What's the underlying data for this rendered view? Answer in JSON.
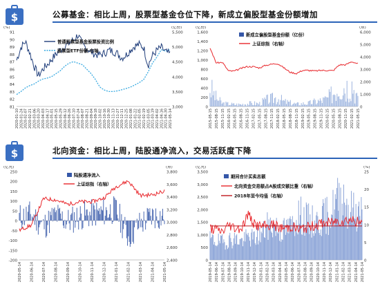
{
  "sections": [
    {
      "title": "公募基金：相比上周，股票型基金仓位下降，新成立偏股型基金份额增加"
    },
    {
      "title": "北向资金：相比上周，陆股通净流入，交易活跃度下降"
    }
  ],
  "colors": {
    "accent": "#2b63b8",
    "icon_bg": "#3a6fc2",
    "dark_blue": "#1f3d7a",
    "light_blue": "#35a8e0",
    "red": "#e8262b",
    "bar_blue": "#3557a8"
  },
  "chart_data": [
    {
      "type": "line",
      "units_left": "(%)",
      "units_right": "(亿份)",
      "y_ticks_left": [
        "91",
        "90",
        "89",
        "88",
        "87",
        "86",
        "85",
        "84",
        "83",
        "82",
        "81"
      ],
      "y_ticks_right": [
        "5,500",
        "5,000",
        "4,500",
        "4,000",
        "3,500",
        "3,000"
      ],
      "ylim_left": [
        81,
        91
      ],
      "ylim_right": [
        3000,
        5500
      ],
      "x": [
        "2020-01-10",
        "2020-01-24",
        "2020-02-07",
        "2020-02-21",
        "2020-03-06",
        "2020-03-20",
        "2020-04-03",
        "2020-04-17",
        "2020-05-01",
        "2020-05-15",
        "2020-05-29",
        "2020-06-12",
        "2020-06-26",
        "2020-07-10",
        "2020-07-24",
        "2020-08-07",
        "2020-08-21",
        "2020-09-04",
        "2020-09-18",
        "2020-10-02",
        "2020-10-16",
        "2020-10-30",
        "2020-11-13",
        "2020-11-27",
        "2020-12-11",
        "2020-12-25",
        "2021-01-08",
        "2021-01-22",
        "2021-02-05",
        "2021-02-19",
        "2021-03-05",
        "2021-03-19",
        "2021-04-02",
        "2021-04-16",
        "2021-04-30",
        "2021-05-14"
      ],
      "series": [
        {
          "name": "普通股票型基金股票投资比例",
          "axis": "left",
          "values": [
            87.2,
            88.9,
            89.7,
            88.2,
            86.4,
            85.1,
            86.0,
            86.6,
            87.3,
            88.0,
            88.6,
            89.0,
            89.5,
            89.9,
            90.6,
            89.3,
            88.8,
            88.3,
            88.0,
            87.9,
            88.1,
            88.5,
            88.4,
            88.1,
            87.5,
            87.9,
            88.6,
            89.1,
            89.3,
            88.9,
            86.5,
            87.8,
            88.5,
            88.9,
            88.3,
            88.0
          ]
        },
        {
          "name": "股票型ETF份额-右轴",
          "axis": "right",
          "values": [
            3400,
            3500,
            3620,
            3700,
            3750,
            3850,
            3920,
            3950,
            4000,
            4100,
            4200,
            4350,
            4450,
            4500,
            4450,
            4400,
            4250,
            4100,
            3900,
            3650,
            3550,
            3500,
            3500,
            3520,
            3560,
            3600,
            3650,
            3720,
            3800,
            3900,
            4150,
            4450,
            4650,
            4900,
            4850,
            4900
          ]
        }
      ]
    },
    {
      "type": "bar+line",
      "units_left": "(亿份)",
      "units_right": "(点)",
      "y_ticks_left": [
        "1,600",
        "1,400",
        "1,200",
        "1,000",
        "800",
        "600",
        "400",
        "200",
        "0"
      ],
      "y_ticks_right": [
        "6,000",
        "5,000",
        "4,000",
        "3,000",
        "2,000",
        "1,000",
        "0"
      ],
      "ylim_left": [
        0,
        1600
      ],
      "ylim_right": [
        0,
        6000
      ],
      "x": [
        "2015-05-15",
        "2015-08-15",
        "2015-11-15",
        "2016-02-15",
        "2016-05-15",
        "2016-08-15",
        "2016-11-15",
        "2017-02-15",
        "2017-05-15",
        "2017-08-15",
        "2017-11-15",
        "2018-02-15",
        "2018-05-15",
        "2018-08-15",
        "2018-11-15",
        "2019-02-15",
        "2019-05-15",
        "2019-08-15",
        "2019-11-15",
        "2020-02-15",
        "2020-05-15",
        "2020-08-15",
        "2020-11-15",
        "2021-02-15",
        "2021-05-15"
      ],
      "series": [
        {
          "name": "新成立偏股型基金份额（亿份）",
          "axis": "left",
          "values": [
            350,
            160,
            60,
            50,
            40,
            40,
            55,
            60,
            55,
            120,
            140,
            170,
            90,
            70,
            45,
            55,
            60,
            90,
            110,
            140,
            260,
            420,
            380,
            460,
            120
          ]
        },
        {
          "name": "上证综指（右轴）",
          "axis": "right",
          "values": [
            4700,
            3500,
            3550,
            2850,
            2850,
            3050,
            3200,
            3200,
            3100,
            3300,
            3400,
            3450,
            3100,
            2750,
            2650,
            2900,
            2900,
            2850,
            2900,
            2900,
            2880,
            3350,
            3350,
            3600,
            3450
          ]
        }
      ]
    },
    {
      "type": "bar+line",
      "units_left": "(亿元)",
      "units_right": "(点)",
      "y_ticks_left": [
        "250",
        "200",
        "150",
        "100",
        "50",
        "0",
        "-50",
        "-100",
        "-150",
        "-200"
      ],
      "y_ticks_right": [
        "3,800",
        "3,600",
        "3,400",
        "3,200",
        "3,000",
        "2,800",
        "2,600",
        "2,400"
      ],
      "ylim_left": [
        -200,
        250
      ],
      "ylim_right": [
        2400,
        3800
      ],
      "x": [
        "2020-05-14",
        "2020-06-14",
        "2020-07-14",
        "2020-08-14",
        "2020-09-14",
        "2020-10-14",
        "2020-11-14",
        "2020-12-14",
        "2021-01-14",
        "2021-02-14",
        "2021-03-14",
        "2021-04-14",
        "2021-05-14"
      ],
      "series": [
        {
          "name": "陆股通净流入",
          "axis": "left",
          "values": [
            15,
            40,
            -60,
            35,
            -20,
            25,
            45,
            60,
            80,
            -150,
            -40,
            30,
            20
          ]
        },
        {
          "name": "上证综指（右轴）",
          "axis": "right",
          "values": [
            2870,
            2950,
            3370,
            3350,
            3280,
            3320,
            3320,
            3380,
            3560,
            3650,
            3420,
            3430,
            3490
          ]
        }
      ]
    },
    {
      "type": "bar+line",
      "units_left": "(亿元)",
      "units_right": "(%)",
      "y_ticks_left": [
        "3,500",
        "3,000",
        "2,500",
        "2,000",
        "1,500",
        "1,000",
        "500",
        "0"
      ],
      "y_ticks_right": [
        "25",
        "20",
        "15",
        "10",
        "5",
        "0"
      ],
      "ylim_left": [
        0,
        3500
      ],
      "ylim_right": [
        0,
        25
      ],
      "x": [
        "2019-05-14",
        "2019-06-14",
        "2019-07-14",
        "2019-08-14",
        "2019-09-14",
        "2019-10-14",
        "2019-11-14",
        "2019-12-14",
        "2020-01-14",
        "2020-02-14",
        "2020-03-14",
        "2020-04-14",
        "2020-05-14",
        "2020-06-14",
        "2020-07-14",
        "2020-08-14",
        "2020-09-14",
        "2020-10-14",
        "2020-11-14",
        "2020-12-14",
        "2021-01-14",
        "2021-02-14",
        "2021-03-14",
        "2021-04-14",
        "2021-05-14"
      ],
      "series": [
        {
          "name": "期间合计买卖总额",
          "axis": "left",
          "values": [
            800,
            750,
            700,
            800,
            820,
            750,
            900,
            850,
            1000,
            1300,
            1400,
            1150,
            1200,
            1350,
            1800,
            1600,
            1500,
            1500,
            1700,
            1800,
            2300,
            2500,
            2000,
            1900,
            1850
          ]
        },
        {
          "name": "北向资金交易额占A股成交额比重（右轴）",
          "axis": "right",
          "values": [
            9,
            8.5,
            8,
            10,
            9,
            9,
            13,
            10,
            9.5,
            9.5,
            10,
            9,
            9,
            9.5,
            8.5,
            9,
            9.5,
            10,
            10.5,
            10.5,
            11,
            11,
            11.5,
            11,
            10
          ]
        },
        {
          "name": "2018年至今均值（右轴）",
          "axis": "right",
          "values": [
            9.6,
            9.6,
            9.6,
            9.6,
            9.6,
            9.6,
            9.6,
            9.6,
            9.6,
            9.6,
            9.6,
            9.6,
            9.6,
            9.6,
            9.6,
            9.6,
            9.6,
            9.6,
            9.6,
            9.6,
            9.6,
            9.6,
            9.6,
            9.6,
            9.6
          ]
        }
      ]
    }
  ]
}
